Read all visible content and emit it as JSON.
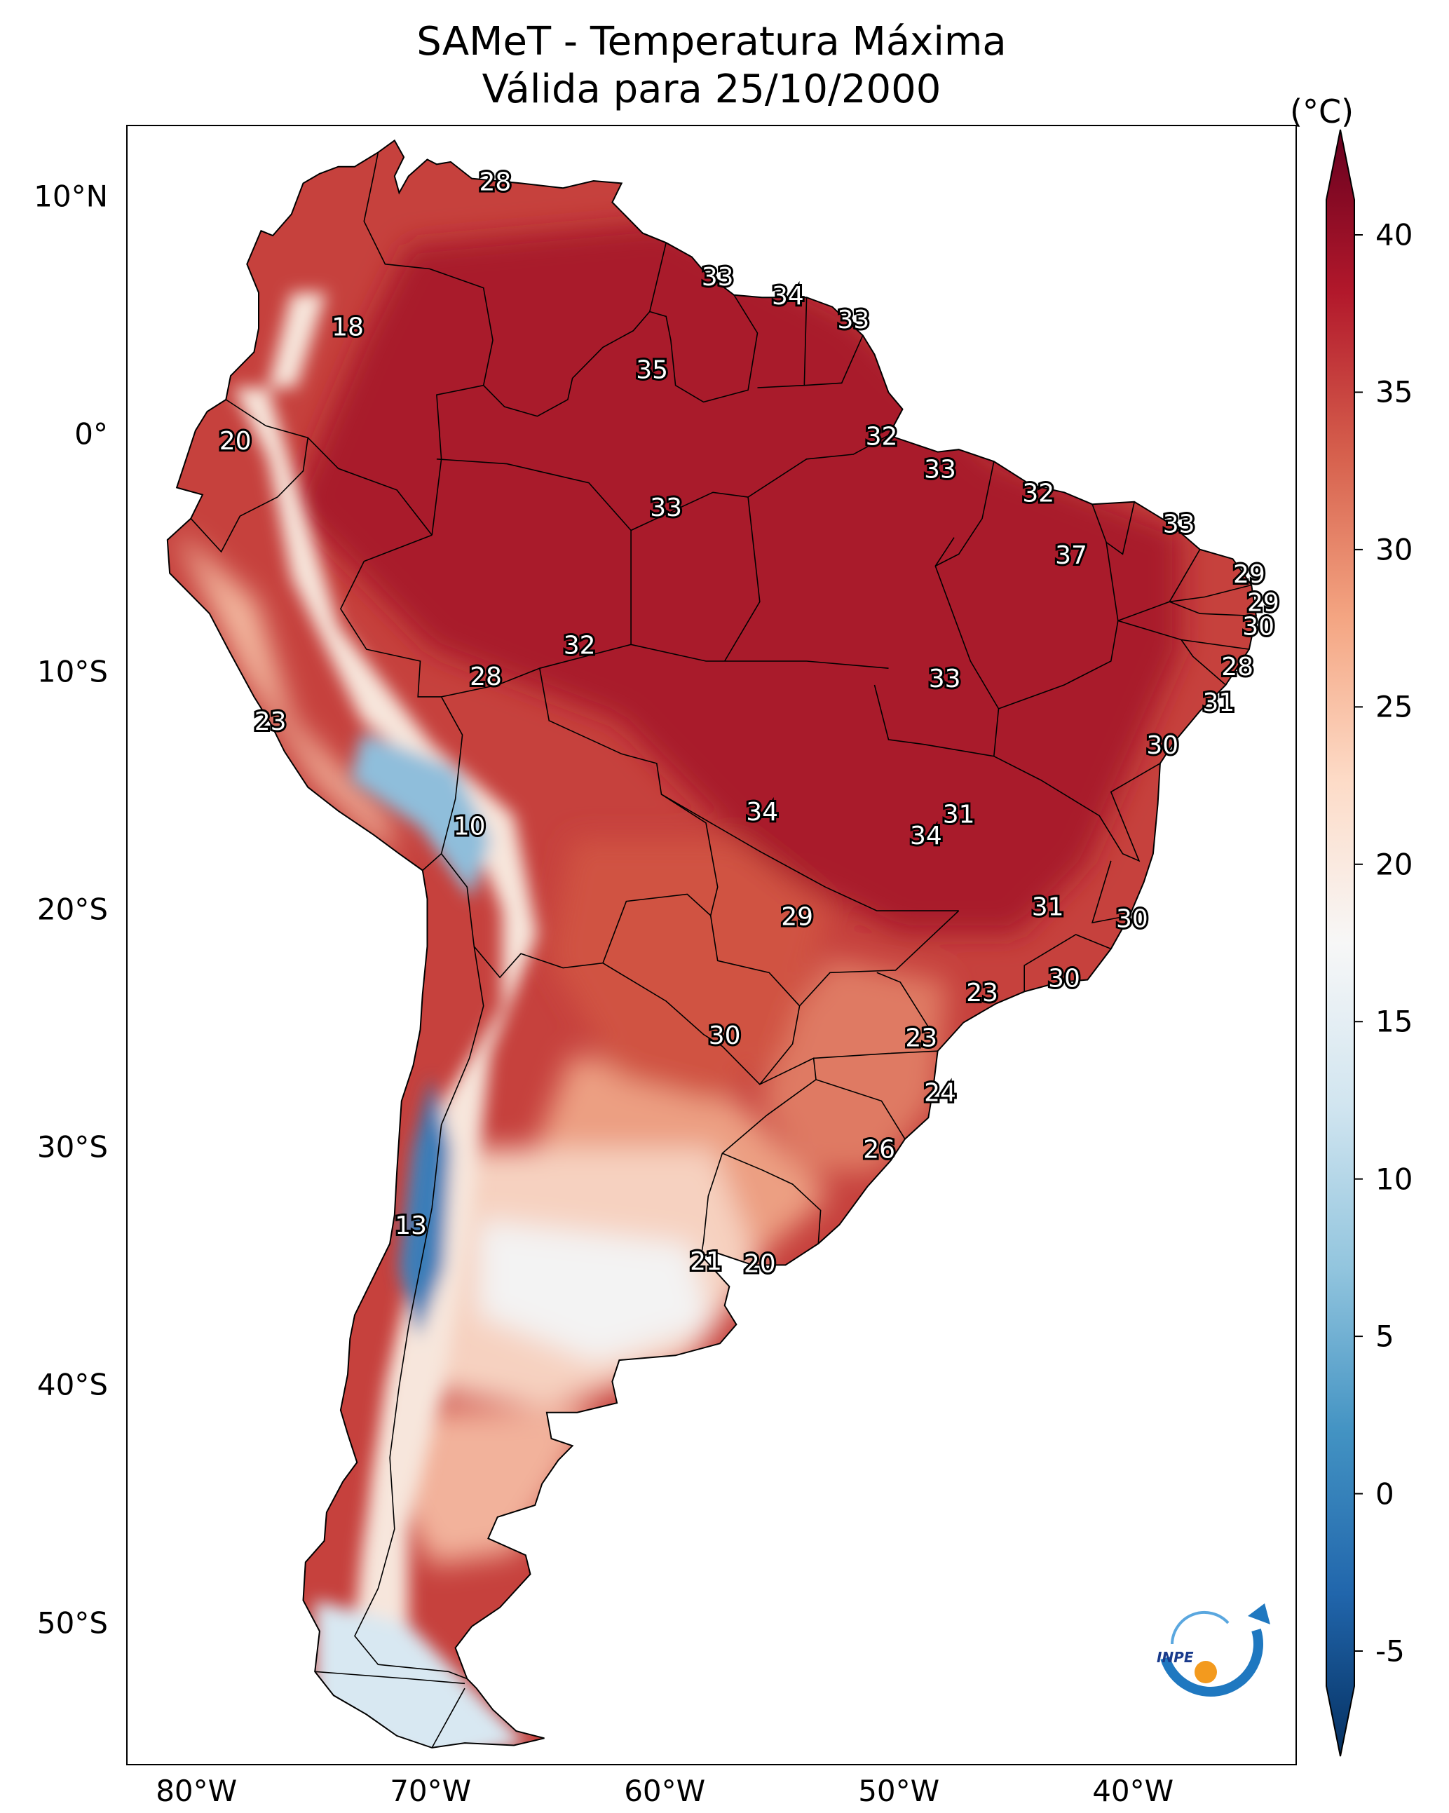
{
  "title": {
    "line1": "SAMeT - Temperatura Máxima",
    "line2": "Válida para 25/10/2000"
  },
  "colorbar": {
    "unit": "(°C)",
    "ticks": [
      "40",
      "35",
      "30",
      "25",
      "20",
      "15",
      "10",
      "5",
      "0",
      "-5"
    ],
    "colors": [
      "#053061",
      "#2166ac",
      "#4393c3",
      "#92c5de",
      "#d1e5f0",
      "#f7f7f7",
      "#fddbc7",
      "#f4a582",
      "#d6604d",
      "#b2182b",
      "#67001f"
    ]
  },
  "axes": {
    "lat_ticks": [
      "10°N",
      "0°",
      "10°S",
      "20°S",
      "30°S",
      "40°S",
      "50°S"
    ],
    "lon_ticks": [
      "80°W",
      "70°W",
      "60°W",
      "50°W",
      "40°W"
    ]
  },
  "map_data": {
    "labels": [
      {
        "text": "28",
        "lon": -67.3,
        "lat": 10.6
      },
      {
        "text": "18",
        "lon": -73.6,
        "lat": 4.5
      },
      {
        "text": "33",
        "lon": -57.8,
        "lat": 6.6
      },
      {
        "text": "34",
        "lon": -54.8,
        "lat": 5.8
      },
      {
        "text": "33",
        "lon": -52.0,
        "lat": 4.8
      },
      {
        "text": "35",
        "lon": -60.6,
        "lat": 2.7
      },
      {
        "text": "20",
        "lon": -78.4,
        "lat": -0.3
      },
      {
        "text": "32",
        "lon": -50.8,
        "lat": -0.1
      },
      {
        "text": "33",
        "lon": -48.3,
        "lat": -1.5
      },
      {
        "text": "33",
        "lon": -60.0,
        "lat": -3.1
      },
      {
        "text": "32",
        "lon": -44.1,
        "lat": -2.5
      },
      {
        "text": "33",
        "lon": -38.1,
        "lat": -3.8
      },
      {
        "text": "37",
        "lon": -42.7,
        "lat": -5.1
      },
      {
        "text": "29",
        "lon": -35.1,
        "lat": -5.9
      },
      {
        "text": "29",
        "lon": -34.5,
        "lat": -7.1
      },
      {
        "text": "30",
        "lon": -34.7,
        "lat": -8.1
      },
      {
        "text": "32",
        "lon": -63.7,
        "lat": -8.9
      },
      {
        "text": "28",
        "lon": -67.7,
        "lat": -10.2
      },
      {
        "text": "28",
        "lon": -35.6,
        "lat": -9.8
      },
      {
        "text": "33",
        "lon": -48.1,
        "lat": -10.3
      },
      {
        "text": "31",
        "lon": -36.4,
        "lat": -11.3
      },
      {
        "text": "23",
        "lon": -76.9,
        "lat": -12.1
      },
      {
        "text": "30",
        "lon": -38.8,
        "lat": -13.1
      },
      {
        "text": "10",
        "lon": -68.4,
        "lat": -16.5
      },
      {
        "text": "34",
        "lon": -55.9,
        "lat": -15.9
      },
      {
        "text": "31",
        "lon": -47.5,
        "lat": -16.0
      },
      {
        "text": "34",
        "lon": -48.9,
        "lat": -16.9
      },
      {
        "text": "29",
        "lon": -54.4,
        "lat": -20.3
      },
      {
        "text": "31",
        "lon": -43.7,
        "lat": -19.9
      },
      {
        "text": "30",
        "lon": -40.1,
        "lat": -20.4
      },
      {
        "text": "30",
        "lon": -43.0,
        "lat": -22.9
      },
      {
        "text": "23",
        "lon": -46.5,
        "lat": -23.5
      },
      {
        "text": "30",
        "lon": -57.5,
        "lat": -25.3
      },
      {
        "text": "23",
        "lon": -49.1,
        "lat": -25.4
      },
      {
        "text": "24",
        "lon": -48.3,
        "lat": -27.7
      },
      {
        "text": "26",
        "lon": -50.9,
        "lat": -30.1
      },
      {
        "text": "13",
        "lon": -70.9,
        "lat": -33.3
      },
      {
        "text": "21",
        "lon": -58.3,
        "lat": -34.8
      },
      {
        "text": "20",
        "lon": -56.0,
        "lat": -34.9
      }
    ]
  },
  "logo": {
    "text": "INPE"
  }
}
